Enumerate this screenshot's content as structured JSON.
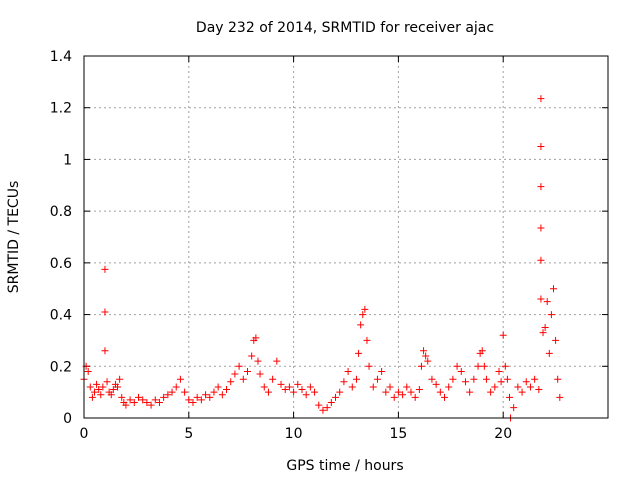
{
  "chart_data": {
    "type": "scatter",
    "title": "Day 232 of 2014, SRMTID for receiver ajac",
    "xlabel": "GPS time / hours",
    "ylabel": "SRMTID / TECUs",
    "xlim": [
      0,
      25
    ],
    "ylim": [
      0,
      1.4
    ],
    "x_ticks": [
      0,
      5,
      10,
      15,
      20
    ],
    "x_tick_labels": [
      "0",
      "5",
      "10",
      "15",
      "20"
    ],
    "y_ticks": [
      0,
      0.2,
      0.4,
      0.6,
      0.8,
      1.0,
      1.2,
      1.4
    ],
    "y_tick_labels": [
      "0",
      "0.2",
      "0.4",
      "0.6",
      "0.8",
      "1",
      "1.2",
      "1.4"
    ],
    "grid": true,
    "marker": "+",
    "series": [
      {
        "name": "SRMTID",
        "color": "#ff0000",
        "x": [
          0.0,
          0.1,
          0.2,
          0.3,
          0.4,
          0.5,
          0.6,
          0.7,
          0.8,
          0.9,
          1.0,
          1.0,
          1.0,
          1.1,
          1.2,
          1.3,
          1.4,
          1.5,
          1.6,
          1.7,
          1.8,
          1.9,
          2.0,
          2.2,
          2.4,
          2.6,
          2.8,
          3.0,
          3.2,
          3.4,
          3.6,
          3.8,
          4.0,
          4.2,
          4.4,
          4.6,
          4.8,
          5.0,
          5.2,
          5.4,
          5.6,
          5.8,
          6.0,
          6.2,
          6.4,
          6.6,
          6.8,
          7.0,
          7.2,
          7.4,
          7.6,
          7.8,
          8.0,
          8.1,
          8.2,
          8.3,
          8.4,
          8.6,
          8.8,
          9.0,
          9.2,
          9.4,
          9.6,
          9.8,
          10.0,
          10.2,
          10.4,
          10.6,
          10.8,
          11.0,
          11.2,
          11.4,
          11.6,
          11.8,
          12.0,
          12.2,
          12.4,
          12.6,
          12.8,
          13.0,
          13.1,
          13.2,
          13.3,
          13.4,
          13.5,
          13.6,
          13.8,
          14.0,
          14.2,
          14.4,
          14.6,
          14.8,
          15.0,
          15.2,
          15.4,
          15.6,
          15.8,
          16.0,
          16.1,
          16.2,
          16.3,
          16.4,
          16.6,
          16.8,
          17.0,
          17.2,
          17.4,
          17.6,
          17.8,
          18.0,
          18.2,
          18.4,
          18.6,
          18.8,
          18.9,
          19.0,
          19.1,
          19.2,
          19.4,
          19.6,
          19.8,
          19.9,
          20.0,
          20.1,
          20.2,
          20.3,
          20.35,
          20.5,
          20.7,
          20.9,
          21.1,
          21.3,
          21.5,
          21.7,
          21.8,
          21.8,
          21.8,
          21.8,
          21.8,
          21.8,
          21.9,
          22.0,
          22.1,
          22.2,
          22.3,
          22.4,
          22.5,
          22.6,
          22.7
        ],
        "y": [
          0.15,
          0.2,
          0.18,
          0.12,
          0.08,
          0.1,
          0.13,
          0.11,
          0.09,
          0.12,
          0.575,
          0.41,
          0.26,
          0.14,
          0.1,
          0.09,
          0.11,
          0.13,
          0.12,
          0.15,
          0.08,
          0.06,
          0.05,
          0.07,
          0.06,
          0.08,
          0.07,
          0.06,
          0.05,
          0.07,
          0.06,
          0.08,
          0.09,
          0.1,
          0.12,
          0.15,
          0.1,
          0.07,
          0.06,
          0.08,
          0.07,
          0.09,
          0.08,
          0.1,
          0.12,
          0.09,
          0.11,
          0.14,
          0.17,
          0.2,
          0.15,
          0.18,
          0.24,
          0.3,
          0.31,
          0.22,
          0.17,
          0.12,
          0.1,
          0.15,
          0.22,
          0.13,
          0.11,
          0.12,
          0.1,
          0.13,
          0.11,
          0.09,
          0.12,
          0.1,
          0.05,
          0.03,
          0.04,
          0.06,
          0.08,
          0.1,
          0.14,
          0.18,
          0.12,
          0.15,
          0.25,
          0.36,
          0.4,
          0.42,
          0.3,
          0.2,
          0.12,
          0.15,
          0.18,
          0.1,
          0.12,
          0.08,
          0.1,
          0.09,
          0.12,
          0.1,
          0.08,
          0.11,
          0.2,
          0.26,
          0.24,
          0.22,
          0.15,
          0.13,
          0.1,
          0.08,
          0.12,
          0.15,
          0.2,
          0.18,
          0.14,
          0.1,
          0.15,
          0.2,
          0.25,
          0.26,
          0.2,
          0.15,
          0.1,
          0.12,
          0.18,
          0.14,
          0.32,
          0.2,
          0.15,
          0.08,
          0.0,
          0.04,
          0.12,
          0.1,
          0.14,
          0.12,
          0.15,
          0.11,
          1.235,
          1.05,
          0.895,
          0.735,
          0.61,
          0.46,
          0.33,
          0.35,
          0.45,
          0.25,
          0.4,
          0.5,
          0.3,
          0.15,
          0.08
        ]
      }
    ]
  }
}
